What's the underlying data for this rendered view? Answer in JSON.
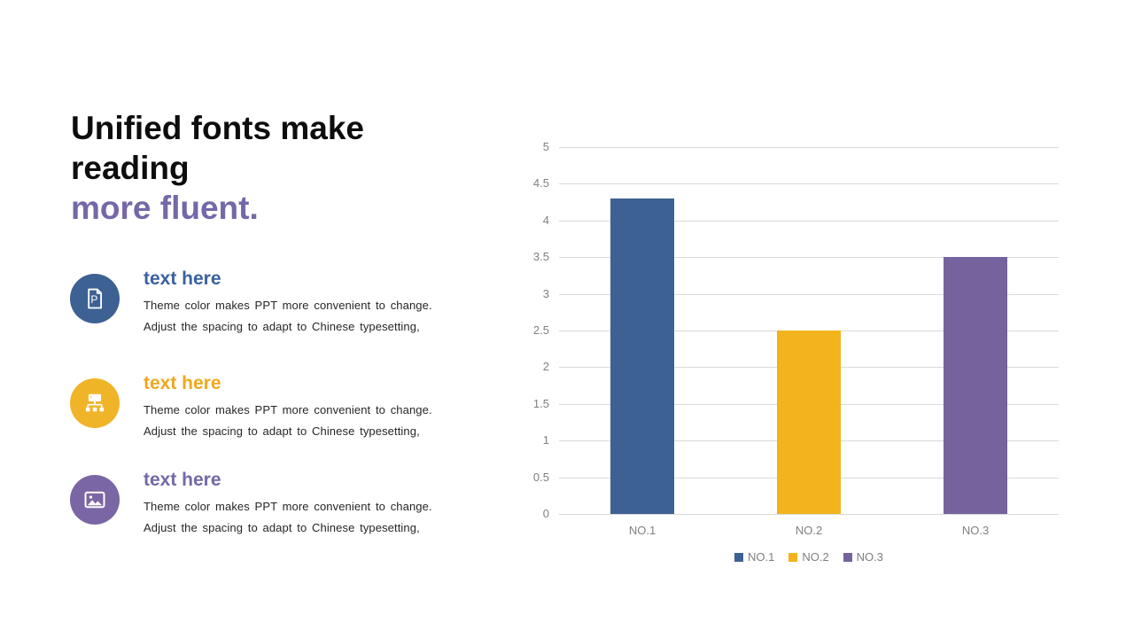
{
  "slide": {
    "title": {
      "black": "Unified fonts make reading",
      "accent": "more fluent.",
      "accent_color": "#7568A8",
      "black_color": "#0d0d0d"
    },
    "items": [
      {
        "icon": "ppt-document-icon",
        "circle_color": "#3E6194",
        "heading": "text here",
        "heading_color": "#3A62A0",
        "line1": "Theme color makes PPT more convenient to change.",
        "line2": "Adjust the spacing to adapt to Chinese typesetting,"
      },
      {
        "icon": "org-chart-icon",
        "circle_color": "#F0B429",
        "heading": "text here",
        "heading_color": "#F0A81E",
        "line1": "Theme color makes PPT more convenient to change.",
        "line2": "Adjust the spacing to adapt to Chinese typesetting,"
      },
      {
        "icon": "image-icon",
        "circle_color": "#7A66A4",
        "heading": "text here",
        "heading_color": "#7568A8",
        "line1": "Theme color makes PPT more convenient to change.",
        "line2": "Adjust the spacing to adapt to Chinese typesetting,"
      }
    ]
  },
  "chart_data": {
    "type": "bar",
    "title": "",
    "categories": [
      "NO.1",
      "NO.2",
      "NO.3"
    ],
    "values": [
      4.3,
      2.5,
      3.5
    ],
    "bars": [
      {
        "label": "NO.1",
        "value": 4.3,
        "color": "#3E6194"
      },
      {
        "label": "NO.2",
        "value": 2.5,
        "color": "#F2B31C"
      },
      {
        "label": "NO.3",
        "value": 3.5,
        "color": "#75639E"
      }
    ],
    "xlabel": "",
    "ylabel": "",
    "ylim": [
      0,
      5
    ],
    "ytick_step": 0.5,
    "grid": true,
    "gridline_color": "#D9D9D9",
    "axis_label_color": "#7F7F7F",
    "legend_position": "bottom",
    "legend_text_color": "#7F7F7F",
    "legend_entries": [
      "NO.1",
      "NO.2",
      "NO.3"
    ]
  }
}
